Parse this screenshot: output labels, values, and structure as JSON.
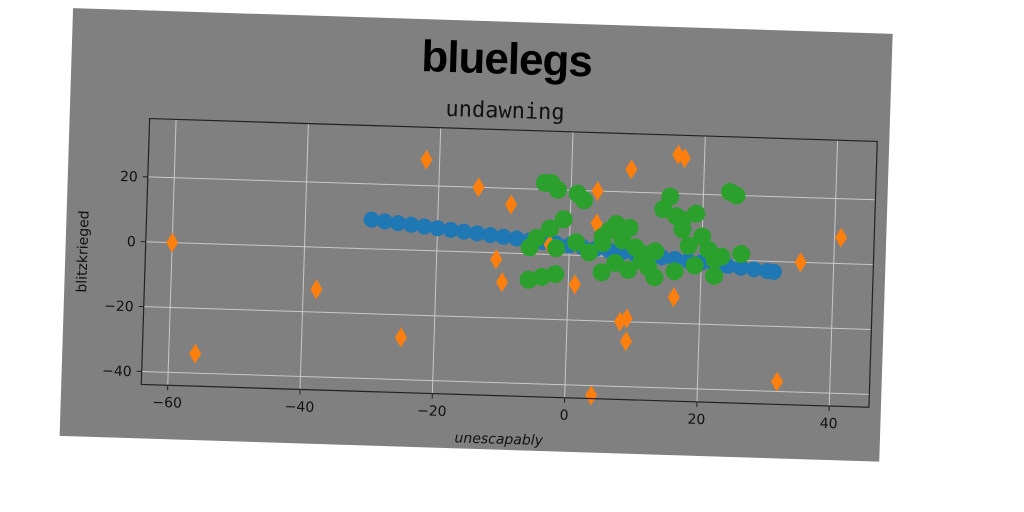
{
  "chart_data": {
    "type": "scatter",
    "title": "bluelegs",
    "subtitle": "undawning",
    "xlabel": "unescapably",
    "ylabel": "blitzkrieged",
    "xlim": [
      -64,
      46
    ],
    "ylim": [
      -44,
      38
    ],
    "xticks": [
      -60,
      -40,
      -20,
      0,
      20,
      40
    ],
    "yticks": [
      -40,
      -20,
      0,
      20
    ],
    "grid": true,
    "colors": {
      "blue": "#1f77b4",
      "orange": "#ff7f0e",
      "green": "#2ca02c",
      "background": "#808080"
    },
    "series": [
      {
        "color": "#1f77b4",
        "marker": "circle",
        "points": [
          [
            -30,
            9
          ],
          [
            -28,
            8.6
          ],
          [
            -26,
            8.2
          ],
          [
            -24,
            7.8
          ],
          [
            -22,
            7.4
          ],
          [
            -20,
            7.0
          ],
          [
            -18,
            6.6
          ],
          [
            -16,
            6.2
          ],
          [
            -14,
            5.8
          ],
          [
            -12,
            5.4
          ],
          [
            -10,
            5.0
          ],
          [
            -8,
            4.6
          ],
          [
            -6,
            4.2
          ],
          [
            -4,
            3.8
          ],
          [
            -2,
            3.4
          ],
          [
            0,
            3.0
          ],
          [
            2,
            2.6
          ],
          [
            4,
            2.2
          ],
          [
            6,
            1.8
          ],
          [
            8,
            1.4
          ],
          [
            10,
            1.0
          ],
          [
            12,
            0.6
          ],
          [
            14,
            0.2
          ],
          [
            16,
            -0.2
          ],
          [
            18,
            -0.6
          ],
          [
            20,
            -1.0
          ],
          [
            22,
            -1.4
          ],
          [
            24,
            -1.8
          ],
          [
            26,
            -2.2
          ],
          [
            28,
            -2.6
          ],
          [
            30,
            -3.0
          ],
          [
            31,
            -3.2
          ]
        ]
      },
      {
        "color": "#ff7f0e",
        "marker": "diamond",
        "points": [
          [
            -60,
            0
          ],
          [
            -56,
            -34
          ],
          [
            -38,
            -13
          ],
          [
            -25,
            -27
          ],
          [
            -22,
            28
          ],
          [
            -14,
            20
          ],
          [
            -9,
            15
          ],
          [
            -11,
            -2
          ],
          [
            -10,
            -9
          ],
          [
            -3,
            3
          ],
          [
            1,
            -9
          ],
          [
            4,
            20
          ],
          [
            4,
            10
          ],
          [
            4,
            -43
          ],
          [
            8,
            -20
          ],
          [
            9,
            -19
          ],
          [
            9,
            -26
          ],
          [
            9,
            27
          ],
          [
            11,
            1
          ],
          [
            16,
            32
          ],
          [
            17,
            31
          ],
          [
            16,
            -12
          ],
          [
            32,
            -37
          ],
          [
            35,
            0
          ],
          [
            41,
            8
          ]
        ]
      },
      {
        "color": "#2ca02c",
        "marker": "circle",
        "points": [
          [
            -4,
            22
          ],
          [
            -3,
            22
          ],
          [
            -2,
            20
          ],
          [
            1,
            19
          ],
          [
            2,
            17
          ],
          [
            -1,
            11
          ],
          [
            -3,
            8
          ],
          [
            -5,
            5
          ],
          [
            -6,
            2
          ],
          [
            -2,
            2
          ],
          [
            1,
            4
          ],
          [
            3,
            1
          ],
          [
            5,
            4
          ],
          [
            5,
            6
          ],
          [
            6,
            8
          ],
          [
            7,
            10
          ],
          [
            8,
            7
          ],
          [
            8,
            5
          ],
          [
            9,
            9
          ],
          [
            10,
            3
          ],
          [
            11,
            -1
          ],
          [
            12,
            1
          ],
          [
            13,
            2
          ],
          [
            15,
            19
          ],
          [
            14,
            15
          ],
          [
            16,
            13
          ],
          [
            17,
            12
          ],
          [
            17,
            9
          ],
          [
            19,
            14
          ],
          [
            20,
            7
          ],
          [
            18,
            4
          ],
          [
            21,
            3
          ],
          [
            22,
            0
          ],
          [
            24,
            21
          ],
          [
            25,
            20
          ],
          [
            23,
            1
          ],
          [
            26,
            2
          ],
          [
            19,
            -2
          ],
          [
            16,
            -4
          ],
          [
            13,
            -6
          ],
          [
            12,
            -3
          ],
          [
            9,
            -4
          ],
          [
            7,
            -2
          ],
          [
            5,
            -5
          ],
          [
            -4,
            -7
          ],
          [
            -6,
            -8
          ],
          [
            -2,
            -6
          ],
          [
            22,
            -5
          ]
        ]
      }
    ]
  }
}
